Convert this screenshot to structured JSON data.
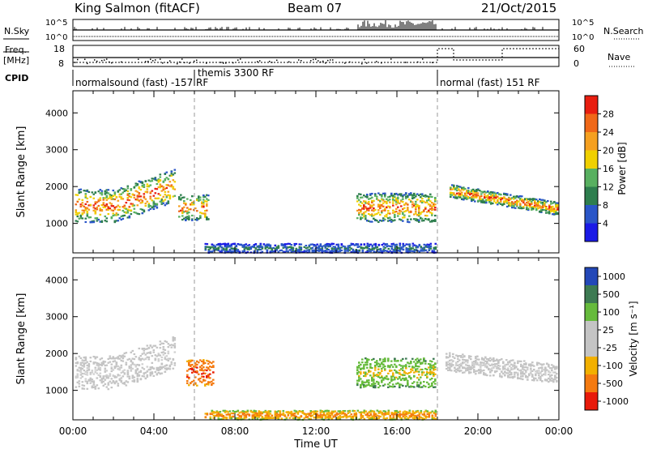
{
  "header": {
    "station": "King Salmon (fitACF)",
    "beam": "Beam 07",
    "date": "21/Oct/2015"
  },
  "top_panels": {
    "nsky_label": "N.Sky",
    "nsearch_label": "N.Search",
    "nsky_ticks": [
      "10^5",
      "10^0"
    ],
    "freq_label_1": "Freq.",
    "freq_label_2": "[MHz]",
    "freq_ticks": [
      "18",
      "8"
    ],
    "nave_label": "Nave",
    "nave_ticks": [
      "60",
      "0"
    ],
    "cpid_label": "CPID",
    "cpid_segments": [
      "normalsound (fast) -157 RF",
      "themis 3300 RF",
      "normal (fast) 151 RF"
    ]
  },
  "colors": {
    "power_scale": [
      "#1a1ae6",
      "#2a56c8",
      "#2e7e4e",
      "#58b060",
      "#f0d000",
      "#f5a020",
      "#f06818",
      "#e81e10"
    ],
    "velocity_scale": [
      "#2348b8",
      "#3d7a52",
      "#66bb3c",
      "#c4c4c4",
      "#c4c4c4",
      "#f2b000",
      "#f47a10",
      "#e81a0a"
    ]
  },
  "chart_data": [
    {
      "type": "heatmap",
      "title": "",
      "xlabel": "Time UT",
      "ylabel": "Slant Range [km]",
      "x_ticks": [
        "00:00",
        "04:00",
        "08:00",
        "12:00",
        "16:00",
        "20:00",
        "00:00"
      ],
      "xlim_hours": [
        0,
        24
      ],
      "ylim": [
        200,
        4600
      ],
      "y_ticks": [
        1000,
        2000,
        3000,
        4000
      ],
      "colorbar_label": "Power [dB]",
      "colorbar_ticks": [
        "4",
        "8",
        "12",
        "16",
        "20",
        "24",
        "28"
      ],
      "crange": [
        0,
        32
      ],
      "markers_hours": [
        6.0,
        18.0
      ]
    },
    {
      "type": "heatmap",
      "title": "",
      "xlabel": "Time UT",
      "ylabel": "Slant Range [km]",
      "x_ticks": [
        "00:00",
        "04:00",
        "08:00",
        "12:00",
        "16:00",
        "20:00",
        "00:00"
      ],
      "xlim_hours": [
        0,
        24
      ],
      "ylim": [
        200,
        4600
      ],
      "y_ticks": [
        1000,
        2000,
        3000,
        4000
      ],
      "colorbar_label": "Velocity [m s⁻¹]",
      "colorbar_ticks": [
        "1000",
        "500",
        "100",
        "25",
        "-25",
        "-100",
        "-500",
        "-1000"
      ],
      "crange": [
        -1000,
        1000
      ],
      "markers_hours": [
        6.0,
        18.0
      ]
    }
  ]
}
